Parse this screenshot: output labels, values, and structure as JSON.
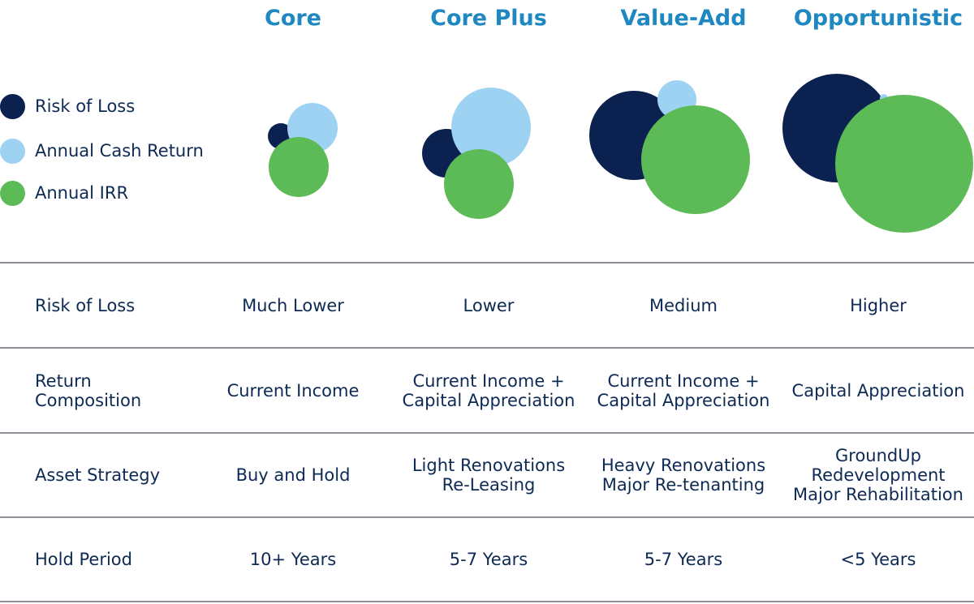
{
  "columns": [
    "Core",
    "Core Plus",
    "Value-Add",
    "Opportunistic"
  ],
  "legend": [
    {
      "label": "Risk of Loss",
      "color": "#0b214f"
    },
    {
      "label": "Annual Cash Return",
      "color": "#9ed2f2"
    },
    {
      "label": "Annual IRR",
      "color": "#5dbb57"
    }
  ],
  "rows": [
    {
      "label": "Risk of Loss",
      "cells": [
        [
          "Much Lower"
        ],
        [
          "Lower"
        ],
        [
          "Medium"
        ],
        [
          "Higher"
        ]
      ]
    },
    {
      "label": "Return Composition",
      "cells": [
        [
          "Current Income"
        ],
        [
          "Current Income +",
          "Capital Appreciation"
        ],
        [
          "Current Income +",
          "Capital Appreciation"
        ],
        [
          "Capital Appreciation"
        ]
      ]
    },
    {
      "label": "Asset Strategy",
      "cells": [
        [
          "Buy and Hold"
        ],
        [
          "Light Renovations",
          "Re-Leasing"
        ],
        [
          "Heavy Renovations",
          "Major Re-tenanting"
        ],
        [
          "GroundUp",
          "Redevelopment",
          "Major Rehabilitation"
        ]
      ]
    },
    {
      "label": "Hold Period",
      "cells": [
        [
          "10+ Years"
        ],
        [
          "5-7 Years"
        ],
        [
          "5-7 Years"
        ],
        [
          "<5 Years"
        ]
      ]
    }
  ]
}
